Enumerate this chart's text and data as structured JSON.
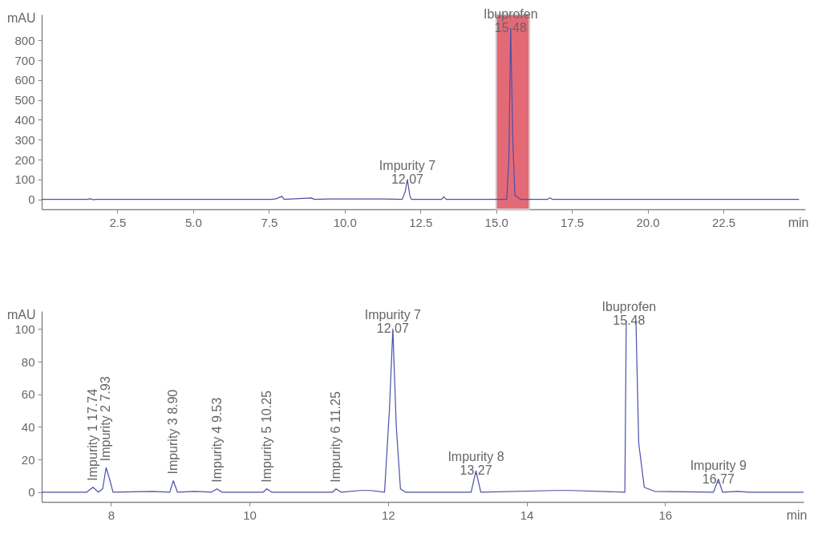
{
  "chart_data": [
    {
      "type": "line",
      "xlabel": "min",
      "ylabel": "mAU",
      "xlim": [
        0,
        25.2
      ],
      "ylim": [
        -50,
        930
      ],
      "xticks": [
        2.5,
        {
          "value": 5,
          "label": "5.0"
        },
        7.5,
        {
          "value": 10,
          "label": "10.0"
        },
        12.5,
        {
          "value": 15,
          "label": "15.0"
        },
        17.5,
        {
          "value": 20,
          "label": "20.0"
        },
        22.5
      ],
      "yticks": [
        0,
        100,
        200,
        300,
        400,
        500,
        600,
        700,
        800
      ],
      "x": [
        0,
        1.5,
        1.6,
        1.7,
        1.8,
        7.6,
        7.74,
        7.93,
        8.0,
        8.9,
        9.0,
        9.53,
        10.25,
        11.25,
        11.9,
        12.0,
        12.07,
        12.15,
        12.2,
        13.2,
        13.27,
        13.35,
        15.35,
        15.42,
        15.48,
        15.55,
        15.62,
        15.8,
        16.7,
        16.77,
        16.85,
        25.0
      ],
      "values": [
        0,
        0,
        3,
        -2,
        0,
        0,
        3,
        15,
        0,
        7,
        0,
        2,
        2,
        2,
        0,
        40,
        100,
        20,
        0,
        0,
        13,
        0,
        0,
        200,
        860,
        300,
        20,
        0,
        0,
        8,
        0,
        0
      ],
      "color": "#4b4fa8",
      "bands": [
        {
          "axis": "x",
          "from": 15.0,
          "to": 16.1,
          "color": "#e05060"
        }
      ],
      "annotations": [
        {
          "text": "Impurity 7\n12.07",
          "x": 12.07,
          "y": 100
        },
        {
          "text": "Ibuprofen\n15.48",
          "x": 15.48,
          "y": 860
        }
      ]
    },
    {
      "type": "line",
      "xlabel": "min",
      "ylabel": "mAU",
      "xlim": [
        7.0,
        18.0
      ],
      "ylim": [
        -6,
        111
      ],
      "xticks": [
        8,
        10,
        12,
        14,
        16
      ],
      "yticks": [
        0,
        20,
        40,
        60,
        80,
        100
      ],
      "x": [
        7.0,
        7.65,
        7.74,
        7.82,
        7.88,
        7.93,
        7.98,
        8.03,
        8.6,
        8.85,
        8.9,
        8.96,
        9.2,
        9.45,
        9.53,
        9.6,
        10.2,
        10.25,
        10.32,
        11.2,
        11.25,
        11.32,
        11.6,
        11.75,
        11.95,
        12.02,
        12.07,
        12.12,
        12.18,
        12.25,
        13.2,
        13.27,
        13.34,
        14.4,
        14.65,
        15.42,
        15.44,
        15.5,
        15.58,
        15.62,
        15.7,
        15.85,
        16.7,
        16.77,
        16.83,
        17.05,
        17.2,
        18.0
      ],
      "values": [
        0,
        0,
        3,
        0,
        2,
        15,
        8,
        0,
        0.5,
        0,
        7,
        0,
        0.5,
        0,
        2,
        0,
        0,
        2,
        0,
        0,
        2,
        0,
        1,
        1,
        0,
        50,
        100,
        40,
        2,
        0,
        0,
        13,
        0,
        1,
        1,
        0,
        105,
        null,
        105,
        30,
        3,
        0.5,
        0,
        8,
        0,
        0.5,
        0,
        0
      ],
      "color": "#4b4fa8",
      "annotations": [
        {
          "text": "Impurity 1 17.74",
          "x": 7.74,
          "y": 3
        },
        {
          "text": "Impurity 2 7.93",
          "x": 7.93,
          "y": 15
        },
        {
          "text": "Impurity 3 8.90",
          "x": 8.9,
          "y": 7
        },
        {
          "text": "Impurity 4 9.53",
          "x": 9.53,
          "y": 2
        },
        {
          "text": "Impurity 5 10.25",
          "x": 10.25,
          "y": 2
        },
        {
          "text": "Impurity 6 11.25",
          "x": 11.25,
          "y": 2
        },
        {
          "text": "Impurity 7\n12.07",
          "x": 12.07,
          "y": 100
        },
        {
          "text": "Impurity 8\n13.27",
          "x": 13.27,
          "y": 13
        },
        {
          "text": "Ibuprofen\n15.48",
          "x": 15.48,
          "y": 105
        },
        {
          "text": "Impurity 9\n16.77",
          "x": 16.77,
          "y": 8
        }
      ]
    }
  ]
}
